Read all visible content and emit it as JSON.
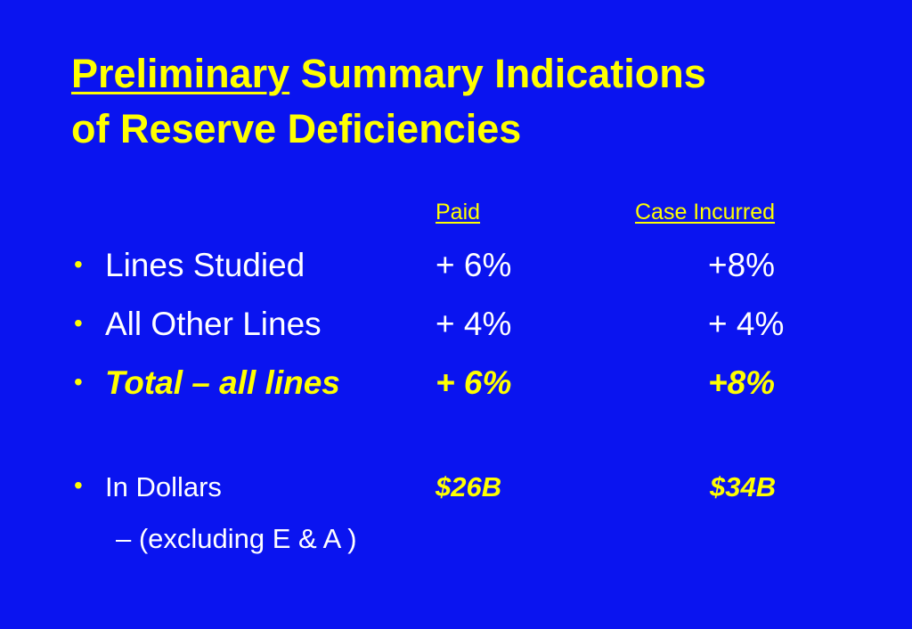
{
  "slide": {
    "title_emphasis": "Preliminary",
    "title_rest_line1": " Summary Indications",
    "title_line2": "of Reserve Deficiencies",
    "col_paid": "Paid",
    "col_case_incurred": "Case Incurred",
    "bullet_char": "•",
    "rows": [
      {
        "label": "Lines Studied",
        "paid": "+ 6%",
        "case": "+8%"
      },
      {
        "label": "All Other Lines",
        "paid": "+ 4%",
        "case": "+ 4%"
      },
      {
        "label": "Total – all lines",
        "paid": "+ 6%",
        "case": "+8%"
      }
    ],
    "dollars": {
      "label": "In Dollars",
      "paid": "$26B",
      "case": "$34B"
    },
    "sub_note": "– (excluding E & A )"
  },
  "colors": {
    "background": "#0a14f0",
    "title": "#ffff00",
    "body": "#ffffff"
  }
}
